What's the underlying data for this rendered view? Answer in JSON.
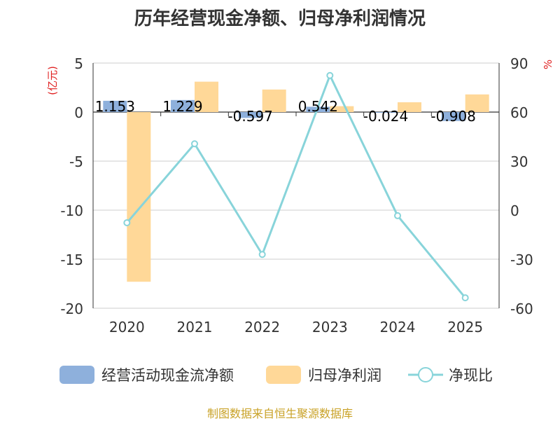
{
  "chart_data": {
    "type": "bar",
    "title": "历年经营现金净额、归母净利润情况",
    "categories": [
      "2020",
      "2021",
      "2022",
      "2023",
      "2024",
      "2025"
    ],
    "series": [
      {
        "name": "经营活动现金流净额",
        "type": "bar",
        "axis": "left",
        "color": "#8eb0dc",
        "values": [
          1.153,
          1.229,
          -0.597,
          0.542,
          -0.024,
          -0.908
        ],
        "labels": [
          "1.153",
          "1.229",
          "-0.597",
          "0.542",
          "-0.024",
          "-0.908"
        ]
      },
      {
        "name": "归母净利润",
        "type": "bar",
        "axis": "left",
        "color": "#ffd898",
        "values": [
          -17.3,
          3.1,
          2.3,
          0.6,
          1.0,
          1.8
        ]
      },
      {
        "name": "净现比",
        "type": "line",
        "axis": "right",
        "color": "#88d4da",
        "values": [
          -7.7,
          40.6,
          -27.1,
          82.4,
          -3.4,
          -53.6
        ]
      }
    ],
    "y_left": {
      "label": "(亿元)",
      "min": -20,
      "max": 5,
      "ticks": [
        5,
        0,
        -5,
        -10,
        -15,
        -20
      ]
    },
    "y_right": {
      "label": "%",
      "min": -60,
      "max": 90,
      "ticks": [
        90,
        60,
        30,
        0,
        -30,
        -60
      ]
    },
    "legend_position": "bottom",
    "grid": true
  },
  "footer": "制图数据来自恒生聚源数据库"
}
